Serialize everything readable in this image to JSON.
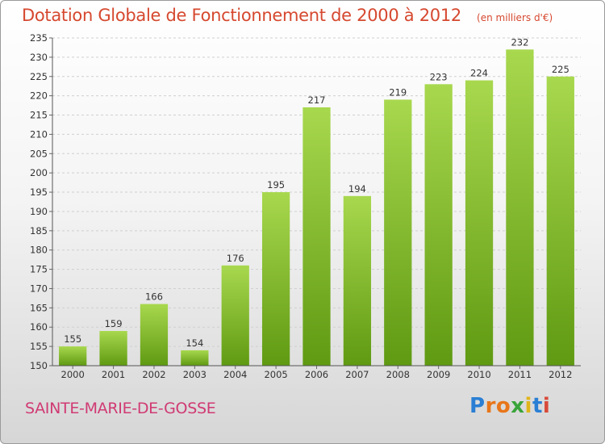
{
  "title": "Dotation Globale de Fonctionnement de 2000 à 2012",
  "subtitle": "(en milliers d'€)",
  "place": "SAINTE-MARIE-DE-GOSSE",
  "logo": {
    "letters": [
      "P",
      "r",
      "o",
      "x",
      "i",
      "t",
      "i"
    ],
    "colors": [
      "#2a7fd4",
      "#e8761a",
      "#e8761a",
      "#3aa43a",
      "#e0b51a",
      "#2a7fd4",
      "#d84a3a"
    ]
  },
  "colors": {
    "bar_top": "#a8d84e",
    "bar_bottom": "#5f9a12",
    "text": "#d6482f",
    "place": "#d03a73"
  },
  "chart_data": {
    "type": "bar",
    "categories": [
      "2000",
      "2001",
      "2002",
      "2003",
      "2004",
      "2005",
      "2006",
      "2007",
      "2008",
      "2009",
      "2010",
      "2011",
      "2012"
    ],
    "values": [
      155,
      159,
      166,
      154,
      176,
      195,
      217,
      194,
      219,
      223,
      224,
      232,
      225
    ],
    "ylim": [
      150,
      235
    ],
    "yticks": [
      150,
      155,
      160,
      165,
      170,
      175,
      180,
      185,
      190,
      195,
      200,
      205,
      210,
      215,
      220,
      225,
      230,
      235
    ],
    "grid": true
  }
}
